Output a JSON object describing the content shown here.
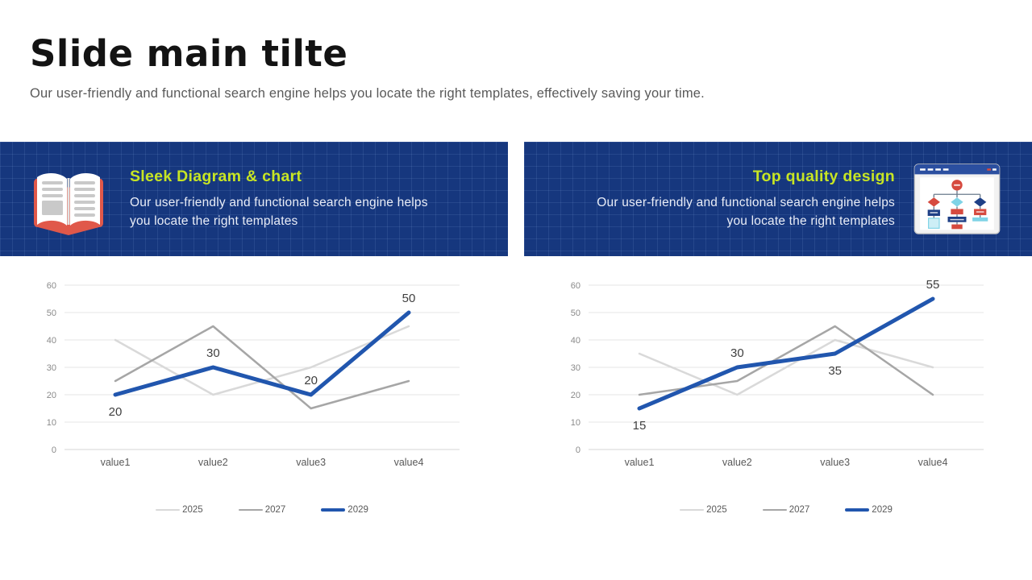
{
  "slide": {
    "title": "Slide main tilte",
    "subtitle": "Our user-friendly and functional search engine helps you locate the right templates, effectively saving your time."
  },
  "banners": [
    {
      "heading": "Sleek Diagram & chart",
      "body_line1": "Our user-friendly and functional search engine helps",
      "body_line2": "you locate the right templates",
      "icon": "open-book-icon"
    },
    {
      "heading": "Top quality design",
      "body_line1": "Our user-friendly and functional search engine helps",
      "body_line2": "you locate the right templates",
      "icon": "flowchart-window-icon"
    }
  ],
  "colors": {
    "banner_bg": "#16377e",
    "heading_green": "#c7e524",
    "chart_blue": "#2156ae",
    "series_gray_dark": "#a6a6a6",
    "series_gray_light": "#d9d9d9",
    "gridline": "#e4e4e4",
    "zero_line": "#d6d6d6",
    "axis_tick_text": "#8a8a8a",
    "category_text": "#595959",
    "data_label_text": "#3f3f3f",
    "book_icon_red": "#e0584a",
    "flowchart_red": "#d64a3f",
    "flowchart_cyan": "#7fd3e6",
    "flowchart_navy": "#1e3f86"
  },
  "chart_data": [
    {
      "type": "line",
      "title": "",
      "categories": [
        "value1",
        "value2",
        "value3",
        "value4"
      ],
      "series": [
        {
          "name": "2025",
          "values": [
            40,
            20,
            30,
            45
          ],
          "color": "#d9d9d9",
          "width": 2.5,
          "labels": false
        },
        {
          "name": "2027",
          "values": [
            25,
            45,
            15,
            25
          ],
          "color": "#a6a6a6",
          "width": 2.5,
          "labels": false
        },
        {
          "name": "2029",
          "values": [
            20,
            30,
            20,
            50
          ],
          "color": "#2156ae",
          "width": 5,
          "labels": true,
          "label_pos": [
            "below",
            "above",
            "above",
            "above"
          ]
        }
      ],
      "xlabel": "",
      "ylabel": "",
      "ylim": [
        0,
        60
      ],
      "yticks": [
        0,
        10,
        20,
        30,
        40,
        50,
        60
      ],
      "grid": true,
      "legend_position": "bottom"
    },
    {
      "type": "line",
      "title": "",
      "categories": [
        "value1",
        "value2",
        "value3",
        "value4"
      ],
      "series": [
        {
          "name": "2025",
          "values": [
            35,
            20,
            40,
            30
          ],
          "color": "#d9d9d9",
          "width": 2.5,
          "labels": false
        },
        {
          "name": "2027",
          "values": [
            20,
            25,
            45,
            20
          ],
          "color": "#a6a6a6",
          "width": 2.5,
          "labels": false
        },
        {
          "name": "2029",
          "values": [
            15,
            30,
            35,
            55
          ],
          "color": "#2156ae",
          "width": 5,
          "labels": true,
          "label_pos": [
            "below",
            "above",
            "below",
            "above"
          ]
        }
      ],
      "xlabel": "",
      "ylabel": "",
      "ylim": [
        0,
        60
      ],
      "yticks": [
        0,
        10,
        20,
        30,
        40,
        50,
        60
      ],
      "grid": true,
      "legend_position": "bottom"
    }
  ]
}
